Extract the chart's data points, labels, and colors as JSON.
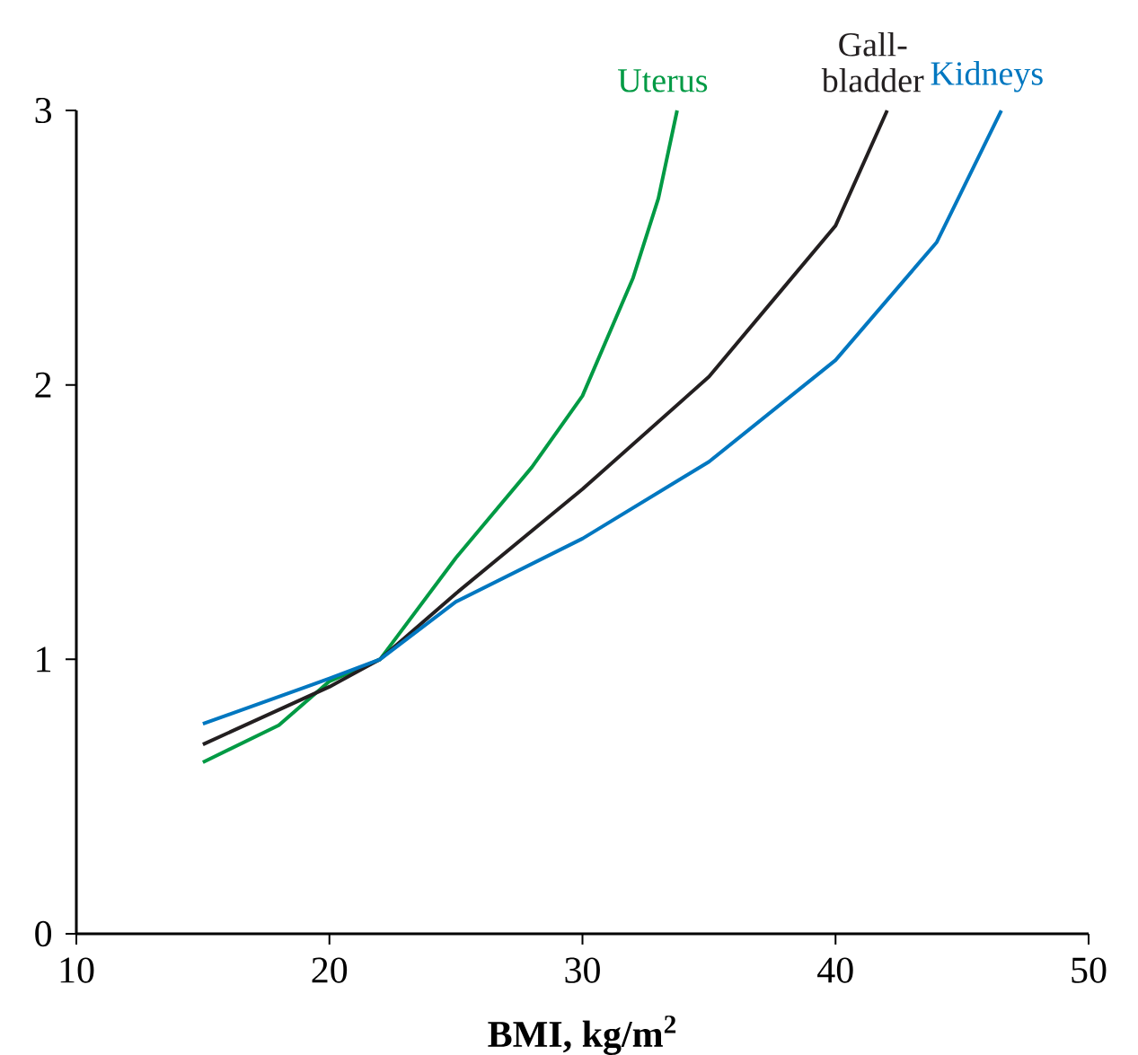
{
  "chart_data": {
    "type": "line",
    "xlabel": "**BMI, kg/m$^{2}$**",
    "xlim": [
      10,
      50
    ],
    "ylim": [
      0,
      3
    ],
    "xticks": [
      10,
      20,
      30,
      40,
      50
    ],
    "yticks": [
      0,
      1,
      2,
      3
    ],
    "grid": false,
    "legend": false,
    "series": [
      {
        "name": "Uterus",
        "color": "#009a44",
        "x": [
          15,
          18,
          20,
          22,
          25,
          28,
          30,
          32,
          33,
          33.74
        ],
        "values": [
          0.625,
          0.76,
          0.92,
          1.0,
          1.37,
          1.7,
          1.96,
          2.39,
          2.68,
          3
        ]
      },
      {
        "name": "Gall-bladder",
        "color": "#231f20",
        "x": [
          15,
          20,
          22,
          25,
          30,
          35,
          38,
          40,
          42.04
        ],
        "values": [
          0.69,
          0.9,
          1.0,
          1.24,
          1.62,
          2.03,
          2.36,
          2.58,
          3
        ]
      },
      {
        "name": "Kidneys",
        "color": "#0077c0",
        "x": [
          15,
          20,
          22,
          25,
          30,
          35,
          40,
          44,
          46.55
        ],
        "values": [
          0.765,
          0.93,
          1.0,
          1.21,
          1.44,
          1.72,
          2.09,
          2.52,
          3
        ]
      }
    ]
  }
}
